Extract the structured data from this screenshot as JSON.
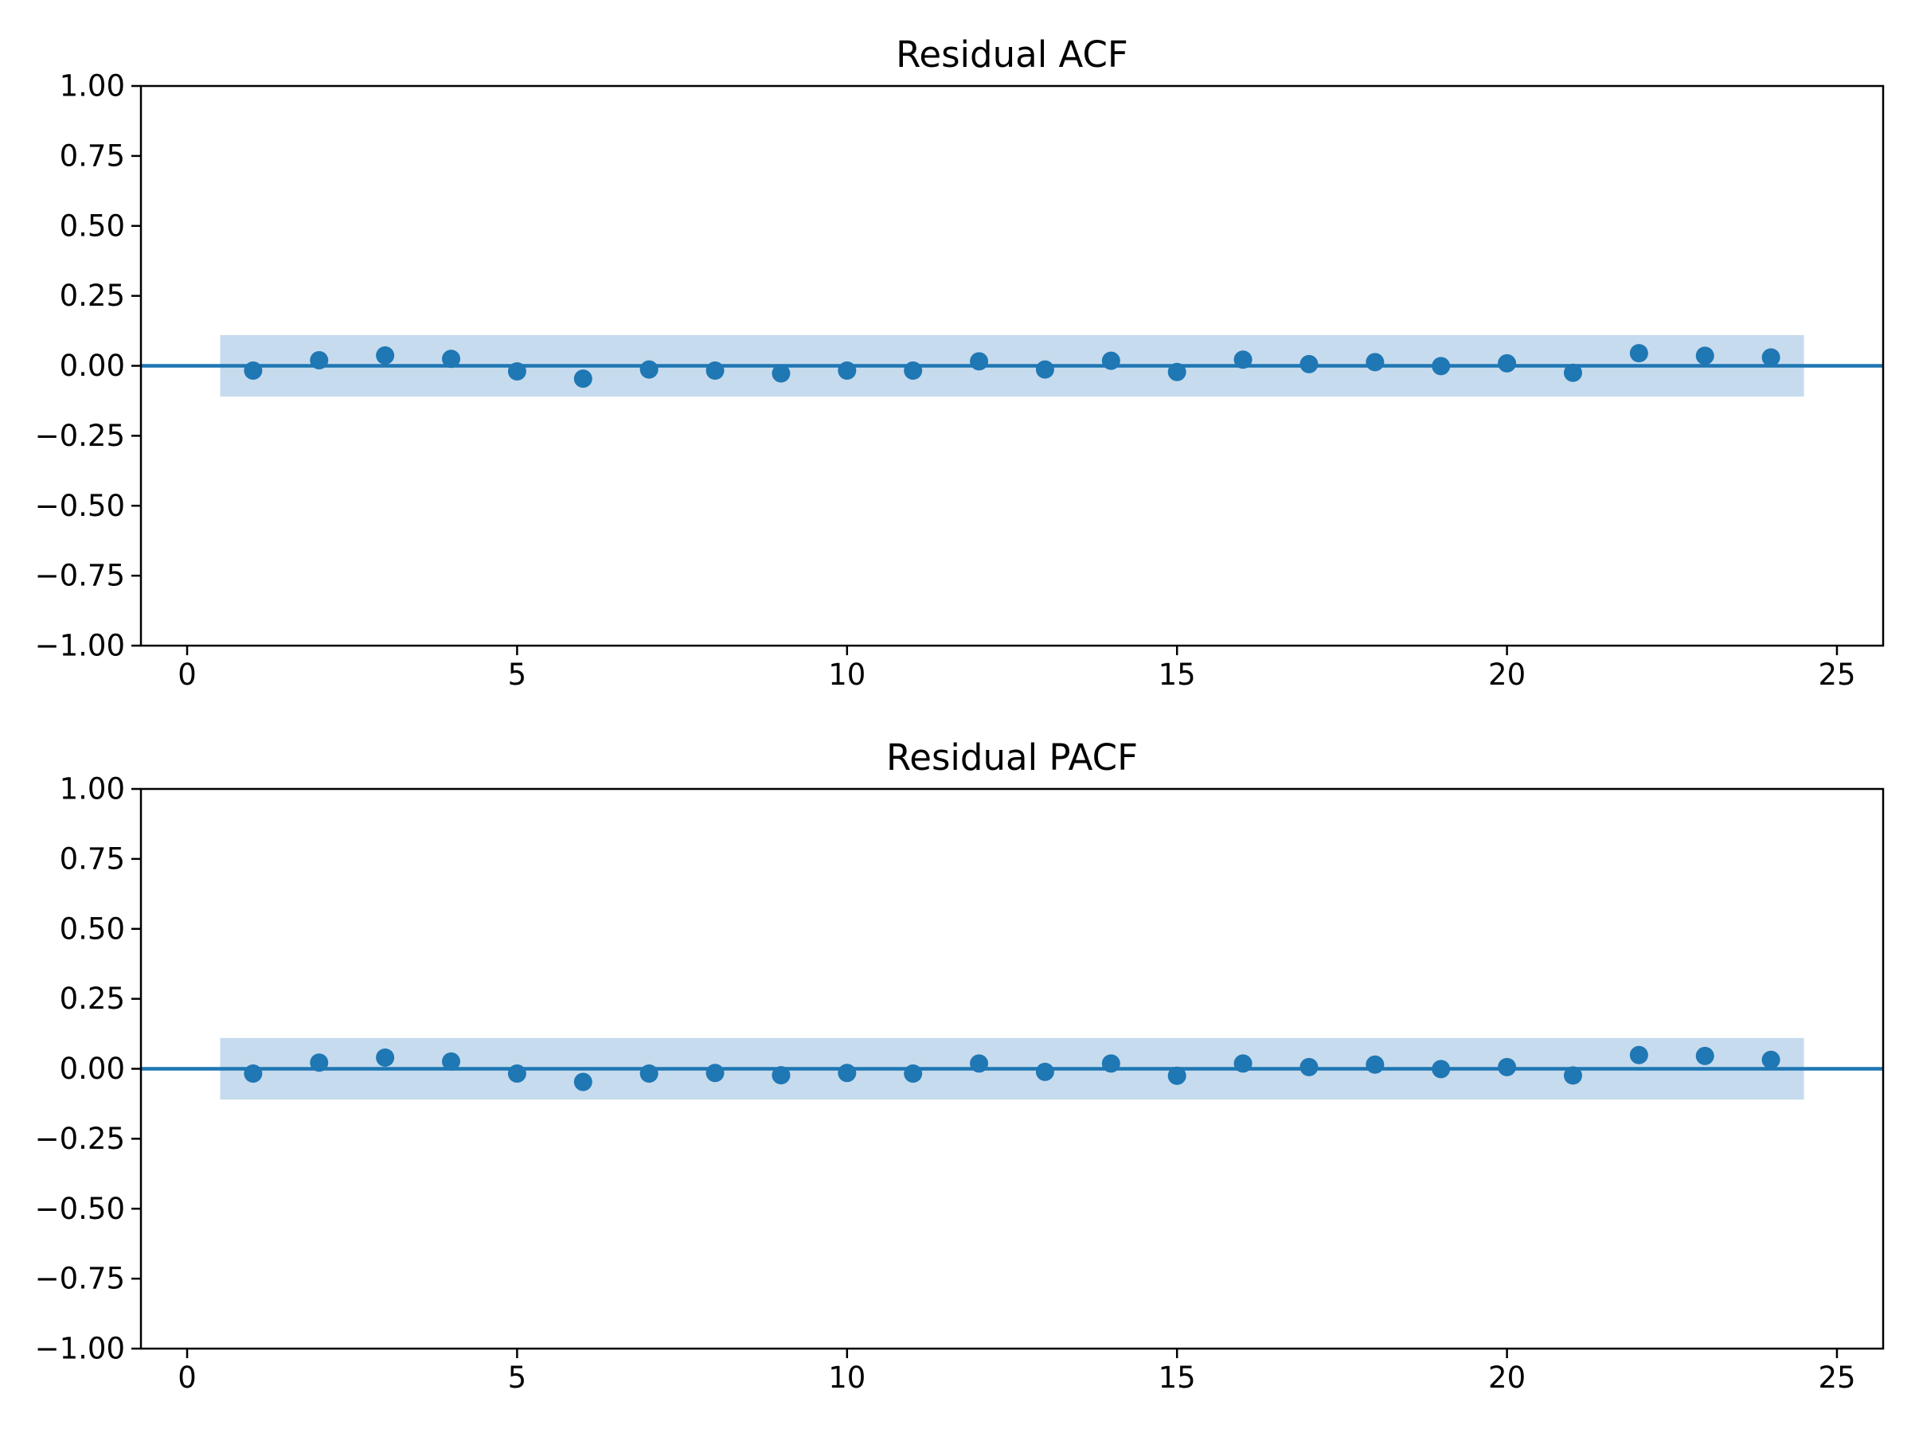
{
  "chart_data": [
    {
      "type": "scatter",
      "title": "Residual ACF",
      "xlabel": "",
      "ylabel": "",
      "xlim": [
        -0.7,
        25.7
      ],
      "ylim": [
        -1.0,
        1.0
      ],
      "xticks": [
        0,
        5,
        10,
        15,
        20,
        25
      ],
      "xtick_labels": [
        "0",
        "5",
        "10",
        "15",
        "20",
        "25"
      ],
      "yticks": [
        1.0,
        0.75,
        0.5,
        0.25,
        0.0,
        -0.25,
        -0.5,
        -0.75,
        -1.0
      ],
      "ytick_labels": [
        "1.00",
        "0.75",
        "0.50",
        "0.25",
        "0.00",
        "−0.25",
        "−0.50",
        "−0.75",
        "−1.00"
      ],
      "grid": false,
      "zero_line": 0.0,
      "confidence_band": {
        "x_range": [
          0.5,
          24.5
        ],
        "bounds": [
          -0.11,
          0.11
        ]
      },
      "x": [
        1,
        2,
        3,
        4,
        5,
        6,
        7,
        8,
        9,
        10,
        11,
        12,
        13,
        14,
        15,
        16,
        17,
        18,
        19,
        20,
        21,
        22,
        23,
        24
      ],
      "values": [
        -0.017,
        0.02,
        0.037,
        0.025,
        -0.02,
        -0.046,
        -0.013,
        -0.017,
        -0.027,
        -0.017,
        -0.017,
        0.016,
        -0.013,
        0.018,
        -0.022,
        0.022,
        0.006,
        0.013,
        -0.001,
        0.009,
        -0.025,
        0.045,
        0.036,
        0.03
      ],
      "colors": {
        "marker": "#1f77b4",
        "band": "#c6dbed",
        "axes": "#000000"
      }
    },
    {
      "type": "scatter",
      "title": "Residual PACF",
      "xlabel": "",
      "ylabel": "",
      "xlim": [
        -0.7,
        25.7
      ],
      "ylim": [
        -1.0,
        1.0
      ],
      "xticks": [
        0,
        5,
        10,
        15,
        20,
        25
      ],
      "xtick_labels": [
        "0",
        "5",
        "10",
        "15",
        "20",
        "25"
      ],
      "yticks": [
        1.0,
        0.75,
        0.5,
        0.25,
        0.0,
        -0.25,
        -0.5,
        -0.75,
        -1.0
      ],
      "ytick_labels": [
        "1.00",
        "0.75",
        "0.50",
        "0.25",
        "0.00",
        "−0.25",
        "−0.50",
        "−0.75",
        "−1.00"
      ],
      "grid": false,
      "zero_line": 0.0,
      "confidence_band": {
        "x_range": [
          0.5,
          24.5
        ],
        "bounds": [
          -0.11,
          0.11
        ]
      },
      "x": [
        1,
        2,
        3,
        4,
        5,
        6,
        7,
        8,
        9,
        10,
        11,
        12,
        13,
        14,
        15,
        16,
        17,
        18,
        19,
        20,
        21,
        22,
        23,
        24
      ],
      "values": [
        -0.017,
        0.022,
        0.04,
        0.026,
        -0.017,
        -0.047,
        -0.017,
        -0.015,
        -0.023,
        -0.015,
        -0.017,
        0.019,
        -0.011,
        0.019,
        -0.025,
        0.019,
        0.006,
        0.015,
        -0.001,
        0.006,
        -0.024,
        0.049,
        0.046,
        0.032
      ],
      "colors": {
        "marker": "#1f77b4",
        "band": "#c6dbed",
        "axes": "#000000"
      }
    }
  ]
}
